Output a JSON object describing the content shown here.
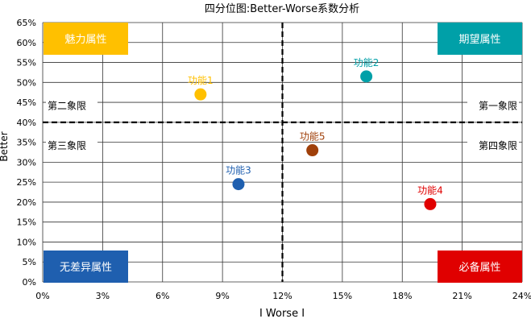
{
  "chart_data": {
    "type": "scatter",
    "title": "四分位图:Better-Worse系数分析",
    "xlabel": "I Worse I",
    "ylabel": "Better",
    "xlim": [
      0,
      24
    ],
    "ylim": [
      0,
      65
    ],
    "xticks": [
      0,
      3,
      6,
      9,
      12,
      15,
      18,
      21,
      24
    ],
    "xtick_labels": [
      "0%",
      "3%",
      "6%",
      "9%",
      "12%",
      "15%",
      "18%",
      "21%",
      "24%"
    ],
    "yticks": [
      0,
      5,
      10,
      15,
      20,
      25,
      30,
      35,
      40,
      45,
      50,
      55,
      60,
      65
    ],
    "ytick_labels": [
      "0%",
      "5%",
      "10%",
      "15%",
      "20%",
      "25%",
      "30%",
      "35%",
      "40%",
      "45%",
      "50%",
      "55%",
      "60%",
      "65%"
    ],
    "grid": true,
    "divider_x": 12,
    "divider_y": 40,
    "points": [
      {
        "label": "功能1",
        "x": 7.9,
        "y": 47,
        "color": "#FFC000"
      },
      {
        "label": "功能2",
        "x": 16.2,
        "y": 51.5,
        "color": "#00A0A8"
      },
      {
        "label": "功能3",
        "x": 9.8,
        "y": 24.5,
        "color": "#1F5FAF"
      },
      {
        "label": "功能4",
        "x": 19.4,
        "y": 19.5,
        "color": "#E00000"
      },
      {
        "label": "功能5",
        "x": 13.5,
        "y": 33,
        "color": "#A0400A"
      }
    ],
    "corner_boxes": [
      {
        "label": "魅力属性",
        "corner": "top-left",
        "color": "#FFC000"
      },
      {
        "label": "期望属性",
        "corner": "top-right",
        "color": "#00A0A8"
      },
      {
        "label": "无差异属性",
        "corner": "bottom-left",
        "color": "#1F5FAF"
      },
      {
        "label": "必备属性",
        "corner": "bottom-right",
        "color": "#E00000"
      }
    ],
    "quadrant_labels": [
      {
        "label": "第二象限",
        "position": "upper-left"
      },
      {
        "label": "第一象限",
        "position": "upper-right"
      },
      {
        "label": "第三象限",
        "position": "lower-left"
      },
      {
        "label": "第四象限",
        "position": "lower-right"
      }
    ]
  }
}
